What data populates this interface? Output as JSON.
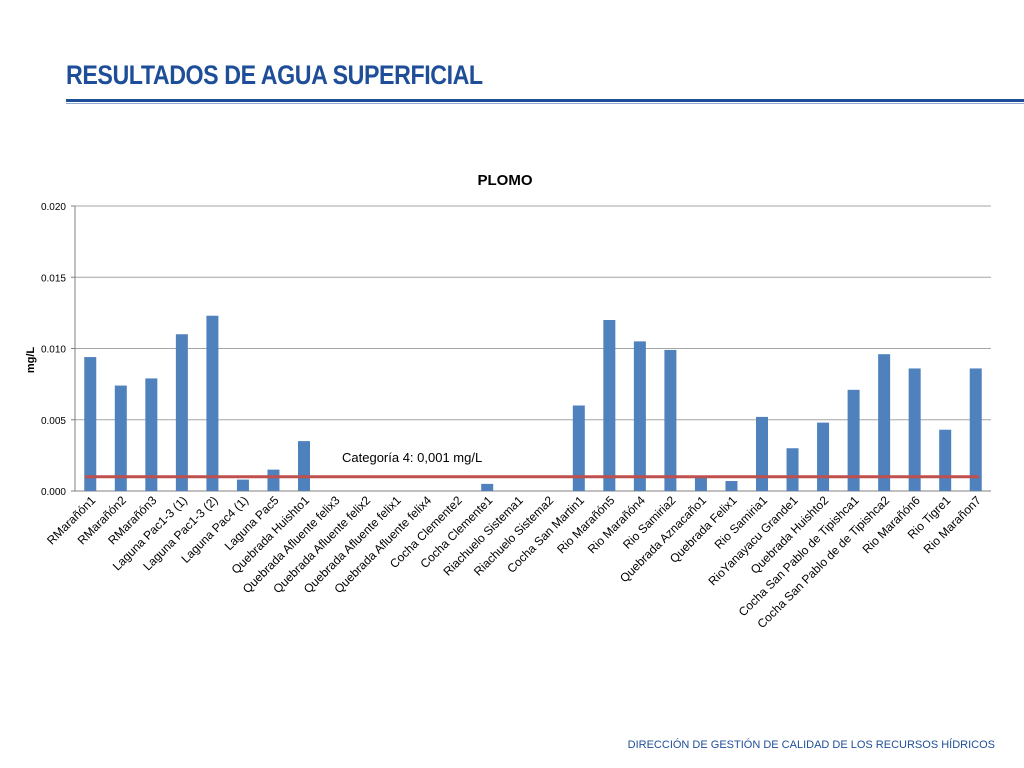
{
  "slide": {
    "title": "RESULTADOS DE AGUA SUPERFICIAL",
    "footer": "DIRECCIÓN DE GESTIÓN DE CALIDAD DE LOS RECURSOS HÍDRICOS"
  },
  "colors": {
    "title": "#1F4E99",
    "bar": "#4F81BD",
    "threshold_line": "#C0504D",
    "grid": "#A6A6A6"
  },
  "chart_data": {
    "type": "bar",
    "title": "PLOMO",
    "ylabel": "mg/L",
    "xlabel": "",
    "ylim": [
      0,
      0.02
    ],
    "yticks": [
      "0.000",
      "0.005",
      "0.010",
      "0.015",
      "0.020"
    ],
    "grid": true,
    "categories": [
      "RMarañón1",
      "RMarañón2",
      "RMarañón3",
      "Laguna Pac1-3 (1)",
      "Laguna Pac1-3 (2)",
      "Laguna Pac4 (1)",
      "Laguna Pac5",
      "Quebrada Huishto1",
      "Quebrada Afluente felix3",
      "Quebrada Afluente felix2",
      "Quebrada Afluente felix1",
      "Quebrada Afluente felix4",
      "Cocha Clemente2",
      "Cocha Clemente1",
      "Riachuelo Sistema1",
      "Riachuelo Sistema2",
      "Cocha San Martin1",
      "Rio Marañón5",
      "Rio Marañón4",
      "Rio Samiria2",
      "Quebrada Aznacaño1",
      "Quebrada Felix1",
      "Rio Samiria1",
      "RioYanayacu Grande1",
      "Quebrada Huishto2",
      "Cocha San Pablo de Tipishca1",
      "Cocha San Pablo de de Tipishca2",
      "Rio Marañón6",
      "Rio Tigre1",
      "Rio Marañon7"
    ],
    "values": [
      0.0094,
      0.0074,
      0.0079,
      0.011,
      0.0123,
      0.0008,
      0.0015,
      0.0035,
      0,
      0,
      0,
      0,
      0,
      0.0005,
      0,
      0,
      0.006,
      0.012,
      0.0105,
      0.0099,
      0.001,
      0.0007,
      0.0052,
      0.003,
      0.0048,
      0.0071,
      0.0096,
      0.0086,
      0.0043,
      0.0086
    ],
    "threshold": {
      "value": 0.001,
      "label": "Categoría 4: 0,001 mg/L"
    }
  }
}
